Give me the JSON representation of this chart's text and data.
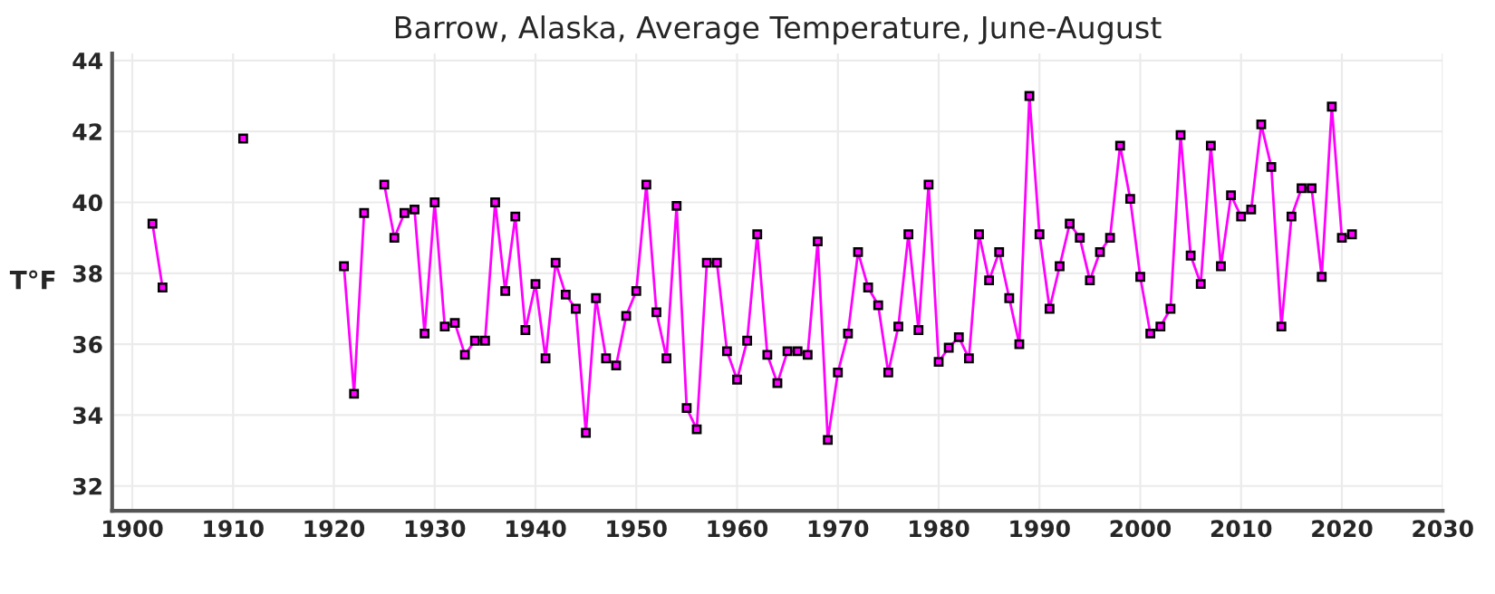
{
  "chart_data": {
    "type": "line",
    "title": "Barrow, Alaska, Average Temperature, June-August",
    "ylabel": "T°F",
    "x": [
      1902,
      1903,
      1904,
      1905,
      1906,
      1907,
      1908,
      1909,
      1910,
      1911,
      1912,
      1913,
      1914,
      1915,
      1916,
      1917,
      1918,
      1919,
      1920,
      1921,
      1922,
      1923,
      1924,
      1925,
      1926,
      1927,
      1928,
      1929,
      1930,
      1931,
      1932,
      1933,
      1934,
      1935,
      1936,
      1937,
      1938,
      1939,
      1940,
      1941,
      1942,
      1943,
      1944,
      1945,
      1946,
      1947,
      1948,
      1949,
      1950,
      1951,
      1952,
      1953,
      1954,
      1955,
      1956,
      1957,
      1958,
      1959,
      1960,
      1961,
      1962,
      1963,
      1964,
      1965,
      1966,
      1967,
      1968,
      1969,
      1970,
      1971,
      1972,
      1973,
      1974,
      1975,
      1976,
      1977,
      1978,
      1979,
      1980,
      1981,
      1982,
      1983,
      1984,
      1985,
      1986,
      1987,
      1988,
      1989,
      1990,
      1991,
      1992,
      1993,
      1994,
      1995,
      1996,
      1997,
      1998,
      1999,
      2000,
      2001,
      2002,
      2003,
      2004,
      2005,
      2006,
      2007,
      2008,
      2009,
      2010,
      2011,
      2012,
      2013,
      2014,
      2015,
      2016,
      2017,
      2018,
      2019,
      2020,
      2021
    ],
    "series": [
      {
        "color": "#ff00ff",
        "values": [
          39.4,
          37.6,
          null,
          null,
          null,
          null,
          null,
          null,
          null,
          41.8,
          null,
          null,
          null,
          null,
          null,
          null,
          null,
          null,
          null,
          38.2,
          34.6,
          39.7,
          null,
          40.5,
          39.0,
          39.7,
          39.8,
          36.3,
          40.0,
          36.5,
          36.6,
          35.7,
          36.1,
          36.1,
          40.0,
          37.5,
          39.6,
          36.4,
          37.7,
          35.6,
          38.3,
          37.4,
          37.0,
          33.5,
          37.3,
          35.6,
          35.4,
          36.8,
          37.5,
          40.5,
          36.9,
          35.6,
          39.9,
          34.2,
          33.6,
          38.3,
          38.3,
          35.8,
          35.0,
          36.1,
          39.1,
          35.7,
          34.9,
          35.8,
          35.8,
          35.7,
          38.9,
          33.3,
          35.2,
          36.3,
          38.6,
          37.6,
          37.1,
          35.2,
          36.5,
          39.1,
          36.4,
          40.5,
          35.5,
          35.9,
          36.2,
          35.6,
          39.1,
          37.8,
          38.6,
          37.3,
          36.0,
          43.0,
          39.1,
          37.0,
          38.2,
          39.4,
          39.0,
          37.8,
          38.6,
          39.0,
          41.6,
          40.1,
          37.9,
          36.3,
          36.5,
          37.0,
          41.9,
          38.5,
          37.7,
          41.6,
          38.2,
          40.2,
          39.6,
          39.8,
          42.2,
          41.0,
          36.5,
          39.6,
          40.4,
          40.4,
          37.9,
          42.7,
          39.0,
          39.1
        ]
      }
    ],
    "xlim": [
      1898,
      2030
    ],
    "xticks": [
      1900,
      1910,
      1920,
      1930,
      1940,
      1950,
      1960,
      1970,
      1980,
      1990,
      2000,
      2010,
      2020,
      2030
    ],
    "ylim": [
      31.3,
      44.2
    ],
    "yticks": [
      32,
      34,
      36,
      38,
      40,
      42,
      44
    ],
    "grid": true,
    "marker": "square",
    "line_style": "solid"
  }
}
